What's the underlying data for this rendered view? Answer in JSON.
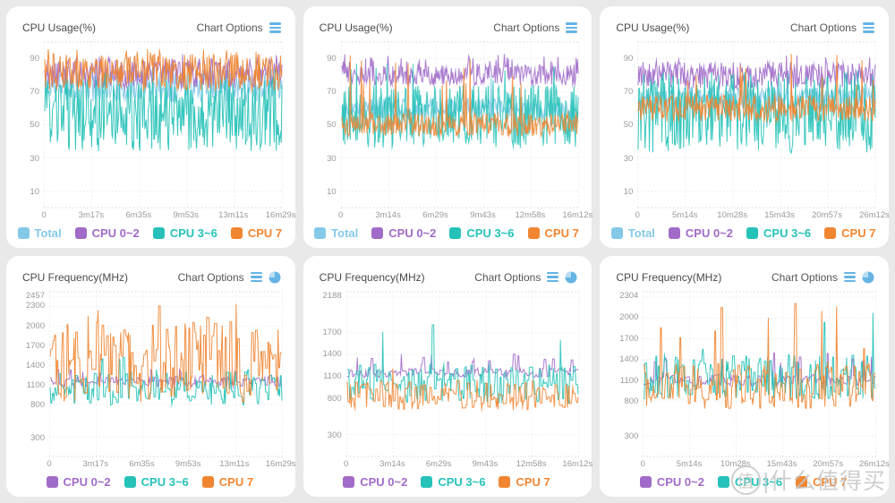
{
  "page": {
    "background": "#e9e9e9"
  },
  "colors": {
    "total": "#85c9e8",
    "cpu02": "#a16cc9",
    "cpu36": "#26c2b9",
    "cpu7": "#f08632",
    "icon_blue": "#66b4e4",
    "title_text": "#4a4a4a",
    "axis_text": "#9a9a9a"
  },
  "watermark": {
    "symbol": "值",
    "text": "|什么值得买"
  },
  "chart_data": [
    {
      "type": "line",
      "title": "CPU Usage(%)",
      "options_label": "Chart Options",
      "icons": [
        "menu-icon"
      ],
      "x_ticks": [
        "0",
        "3m17s",
        "6m35s",
        "9m53s",
        "13m11s",
        "16m29s"
      ],
      "y_ticks": [
        90,
        70,
        50,
        30,
        10
      ],
      "ylim": [
        0,
        100
      ],
      "vmax": 96,
      "legend": [
        {
          "label": "Total",
          "color": "#85c9e8"
        },
        {
          "label": "CPU 0~2",
          "color": "#a16cc9"
        },
        {
          "label": "CPU 3~6",
          "color": "#26c2b9"
        },
        {
          "label": "CPU 7",
          "color": "#f08632"
        }
      ],
      "series": [
        {
          "name": "Total",
          "color": "#85c9e8",
          "base": 74,
          "amp": 10,
          "spike_p": 0.01,
          "spike_max": 88,
          "min": 55,
          "seed": 11
        },
        {
          "name": "CPU 0~2",
          "color": "#a16cc9",
          "base": 81,
          "amp": 9,
          "spike_p": 0.05,
          "spike_max": 93,
          "min": 62,
          "seed": 22
        },
        {
          "name": "CPU 3~6",
          "color": "#26c2b9",
          "base": 56,
          "amp": 22,
          "spike_p": 0.03,
          "spike_max": 85,
          "min": 30,
          "seed": 33
        },
        {
          "name": "CPU 7",
          "color": "#f08632",
          "base": 82,
          "amp": 11,
          "spike_p": 0.04,
          "spike_max": 96,
          "min": 64,
          "seed": 44
        }
      ]
    },
    {
      "type": "line",
      "title": "CPU Usage(%)",
      "options_label": "Chart Options",
      "icons": [
        "menu-icon"
      ],
      "x_ticks": [
        "0",
        "3m14s",
        "6m29s",
        "9m43s",
        "12m58s",
        "16m12s"
      ],
      "y_ticks": [
        90,
        70,
        50,
        30,
        10
      ],
      "ylim": [
        0,
        100
      ],
      "vmax": 95,
      "legend": [
        {
          "label": "Total",
          "color": "#85c9e8"
        },
        {
          "label": "CPU 0~2",
          "color": "#a16cc9"
        },
        {
          "label": "CPU 3~6",
          "color": "#26c2b9"
        },
        {
          "label": "CPU 7",
          "color": "#f08632"
        }
      ],
      "series": [
        {
          "name": "Total",
          "color": "#85c9e8",
          "base": 60,
          "amp": 6,
          "spike_p": 0.01,
          "spike_max": 80,
          "min": 48,
          "seed": 55
        },
        {
          "name": "CPU 0~2",
          "color": "#a16cc9",
          "base": 80,
          "amp": 6,
          "spike_p": 0.06,
          "spike_max": 93,
          "min": 68,
          "seed": 66
        },
        {
          "name": "CPU 3~6",
          "color": "#26c2b9",
          "base": 55,
          "amp": 19,
          "spike_p": 0.02,
          "spike_max": 88,
          "min": 33,
          "seed": 77
        },
        {
          "name": "CPU 7",
          "color": "#f08632",
          "base": 50,
          "amp": 7,
          "spike_p": 0.03,
          "spike_max": 92,
          "min": 41,
          "seed": 88
        }
      ]
    },
    {
      "type": "line",
      "title": "CPU Usage(%)",
      "options_label": "Chart Options",
      "icons": [
        "menu-icon"
      ],
      "x_ticks": [
        "0",
        "5m14s",
        "10m28s",
        "15m43s",
        "20m57s",
        "26m12s"
      ],
      "y_ticks": [
        90,
        70,
        50,
        30,
        10
      ],
      "ylim": [
        0,
        100
      ],
      "vmax": 95,
      "legend": [
        {
          "label": "Total",
          "color": "#85c9e8"
        },
        {
          "label": "CPU 0~2",
          "color": "#a16cc9"
        },
        {
          "label": "CPU 3~6",
          "color": "#26c2b9"
        },
        {
          "label": "CPU 7",
          "color": "#f08632"
        }
      ],
      "series": [
        {
          "name": "Total",
          "color": "#85c9e8",
          "base": 66,
          "amp": 7,
          "spike_p": 0.01,
          "spike_max": 85,
          "min": 52,
          "seed": 99
        },
        {
          "name": "CPU 0~2",
          "color": "#a16cc9",
          "base": 80,
          "amp": 8,
          "spike_p": 0.04,
          "spike_max": 92,
          "min": 66,
          "seed": 110
        },
        {
          "name": "CPU 3~6",
          "color": "#26c2b9",
          "base": 58,
          "amp": 25,
          "spike_p": 0.02,
          "spike_max": 88,
          "min": 30,
          "seed": 121
        },
        {
          "name": "CPU 7",
          "color": "#f08632",
          "base": 60,
          "amp": 8,
          "spike_p": 0.03,
          "spike_max": 93,
          "min": 50,
          "seed": 132
        }
      ]
    },
    {
      "type": "line",
      "title": "CPU Frequency(MHz)",
      "options_label": "Chart Options",
      "icons": [
        "menu-icon",
        "pie-icon"
      ],
      "x_ticks": [
        "0",
        "3m17s",
        "6m35s",
        "9m53s",
        "13m11s",
        "16m29s"
      ],
      "y_ticks": [
        2457,
        2300,
        2000,
        1700,
        1400,
        1100,
        800,
        300
      ],
      "ylim": [
        0,
        2530
      ],
      "vmax": 2457,
      "step": true,
      "legend": [
        {
          "label": "CPU 0~2",
          "color": "#a16cc9"
        },
        {
          "label": "CPU 3~6",
          "color": "#26c2b9"
        },
        {
          "label": "CPU 7",
          "color": "#f08632"
        }
      ],
      "series": [
        {
          "name": "CPU 0~2",
          "color": "#a16cc9",
          "base": 1150,
          "amp": 80,
          "spike_p": 0.1,
          "spike_max": 1380,
          "min": 1040,
          "seed": 143
        },
        {
          "name": "CPU 3~6",
          "color": "#26c2b9",
          "base": 1050,
          "amp": 260,
          "spike_p": 0.02,
          "spike_max": 1600,
          "min": 790,
          "seed": 154
        },
        {
          "name": "CPU 7",
          "color": "#f08632",
          "base": 1450,
          "amp": 620,
          "spike_p": 0.05,
          "spike_max": 2450,
          "min": 800,
          "seed": 165
        }
      ]
    },
    {
      "type": "line",
      "title": "CPU Frequency(MHz)",
      "options_label": "Chart Options",
      "icons": [
        "menu-icon",
        "pie-icon"
      ],
      "x_ticks": [
        "0",
        "3m14s",
        "6m29s",
        "9m43s",
        "12m58s",
        "16m12s"
      ],
      "y_ticks": [
        2188,
        1700,
        1400,
        1100,
        800,
        300
      ],
      "ylim": [
        0,
        2260
      ],
      "vmax": 2188,
      "step": true,
      "legend": [
        {
          "label": "CPU 0~2",
          "color": "#a16cc9"
        },
        {
          "label": "CPU 3~6",
          "color": "#26c2b9"
        },
        {
          "label": "CPU 7",
          "color": "#f08632"
        }
      ],
      "series": [
        {
          "name": "CPU 0~2",
          "color": "#a16cc9",
          "base": 1150,
          "amp": 60,
          "spike_p": 0.12,
          "spike_max": 1430,
          "min": 1080,
          "seed": 176
        },
        {
          "name": "CPU 3~6",
          "color": "#26c2b9",
          "base": 1000,
          "amp": 270,
          "spike_p": 0.015,
          "spike_max": 2188,
          "min": 700,
          "seed": 187
        },
        {
          "name": "CPU 7",
          "color": "#f08632",
          "base": 840,
          "amp": 210,
          "spike_p": 0.01,
          "spike_max": 1350,
          "min": 620,
          "seed": 198
        }
      ]
    },
    {
      "type": "line",
      "title": "CPU Frequency(MHz)",
      "options_label": "Chart Options",
      "icons": [
        "menu-icon",
        "pie-icon"
      ],
      "x_ticks": [
        "0",
        "5m14s",
        "10m28s",
        "15m43s",
        "20m57s",
        "26m12s"
      ],
      "y_ticks": [
        2304,
        2000,
        1700,
        1400,
        1100,
        800,
        300
      ],
      "ylim": [
        0,
        2380
      ],
      "vmax": 2304,
      "step": true,
      "legend": [
        {
          "label": "CPU 0~2",
          "color": "#a16cc9"
        },
        {
          "label": "CPU 3~6",
          "color": "#26c2b9"
        },
        {
          "label": "CPU 7",
          "color": "#f08632"
        }
      ],
      "series": [
        {
          "name": "CPU 0~2",
          "color": "#a16cc9",
          "base": 1100,
          "amp": 80,
          "spike_p": 0.12,
          "spike_max": 1500,
          "min": 1000,
          "seed": 209
        },
        {
          "name": "CPU 3~6",
          "color": "#26c2b9",
          "base": 1150,
          "amp": 330,
          "spike_p": 0.02,
          "spike_max": 2100,
          "min": 780,
          "seed": 220
        },
        {
          "name": "CPU 7",
          "color": "#f08632",
          "base": 1020,
          "amp": 330,
          "spike_p": 0.04,
          "spike_max": 2300,
          "min": 680,
          "seed": 231
        }
      ]
    }
  ]
}
